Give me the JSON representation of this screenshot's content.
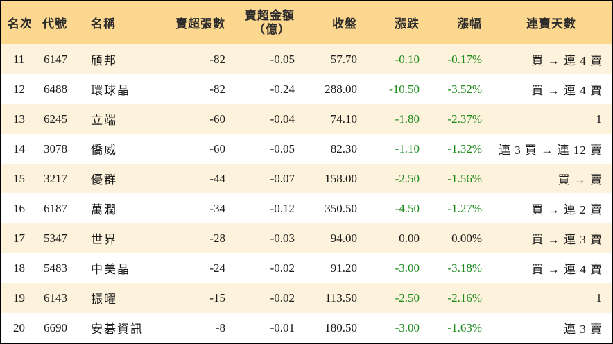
{
  "headers": {
    "rank": "名次",
    "code": "代號",
    "name": "名稱",
    "net_sell_lots": "賣超張數",
    "net_sell_amount_line1": "賣超金額",
    "net_sell_amount_line2": "（億）",
    "close": "收盤",
    "change": "漲跌",
    "change_pct": "漲幅",
    "consecutive_days": "連賣天數"
  },
  "rows": [
    {
      "rank": "11",
      "code": "6147",
      "name": "頎邦",
      "lots": "-82",
      "amount": "-0.05",
      "close": "57.70",
      "change": "-0.10",
      "pct": "-0.17%",
      "days": "買 → 連 4 賣",
      "change_color": "green"
    },
    {
      "rank": "12",
      "code": "6488",
      "name": "環球晶",
      "lots": "-82",
      "amount": "-0.24",
      "close": "288.00",
      "change": "-10.50",
      "pct": "-3.52%",
      "days": "買 → 連 4 賣",
      "change_color": "green"
    },
    {
      "rank": "13",
      "code": "6245",
      "name": "立端",
      "lots": "-60",
      "amount": "-0.04",
      "close": "74.10",
      "change": "-1.80",
      "pct": "-2.37%",
      "days": "1",
      "change_color": "green"
    },
    {
      "rank": "14",
      "code": "3078",
      "name": "僑威",
      "lots": "-60",
      "amount": "-0.05",
      "close": "82.30",
      "change": "-1.10",
      "pct": "-1.32%",
      "days": "連 3 買 → 連 12 賣",
      "change_color": "green"
    },
    {
      "rank": "15",
      "code": "3217",
      "name": "優群",
      "lots": "-44",
      "amount": "-0.07",
      "close": "158.00",
      "change": "-2.50",
      "pct": "-1.56%",
      "days": "買 → 賣",
      "change_color": "green"
    },
    {
      "rank": "16",
      "code": "6187",
      "name": "萬潤",
      "lots": "-34",
      "amount": "-0.12",
      "close": "350.50",
      "change": "-4.50",
      "pct": "-1.27%",
      "days": "買 → 連 2 賣",
      "change_color": "green"
    },
    {
      "rank": "17",
      "code": "5347",
      "name": "世界",
      "lots": "-28",
      "amount": "-0.03",
      "close": "94.00",
      "change": "0.00",
      "pct": "0.00%",
      "days": "買 → 連 3 賣",
      "change_color": "black"
    },
    {
      "rank": "18",
      "code": "5483",
      "name": "中美晶",
      "lots": "-24",
      "amount": "-0.02",
      "close": "91.20",
      "change": "-3.00",
      "pct": "-3.18%",
      "days": "買 → 連 4 賣",
      "change_color": "green"
    },
    {
      "rank": "19",
      "code": "6143",
      "name": "振曜",
      "lots": "-15",
      "amount": "-0.02",
      "close": "113.50",
      "change": "-2.50",
      "pct": "-2.16%",
      "days": "1",
      "change_color": "green"
    },
    {
      "rank": "20",
      "code": "6690",
      "name": "安碁資訊",
      "lots": "-8",
      "amount": "-0.01",
      "close": "180.50",
      "change": "-3.00",
      "pct": "-1.63%",
      "days": "連 3 賣",
      "change_color": "green"
    }
  ],
  "colors": {
    "header_bg": "#fbd78f",
    "stripe_bg": "#fdf2db",
    "down": "#1a8a1a",
    "neutral": "#1a1a1a"
  }
}
